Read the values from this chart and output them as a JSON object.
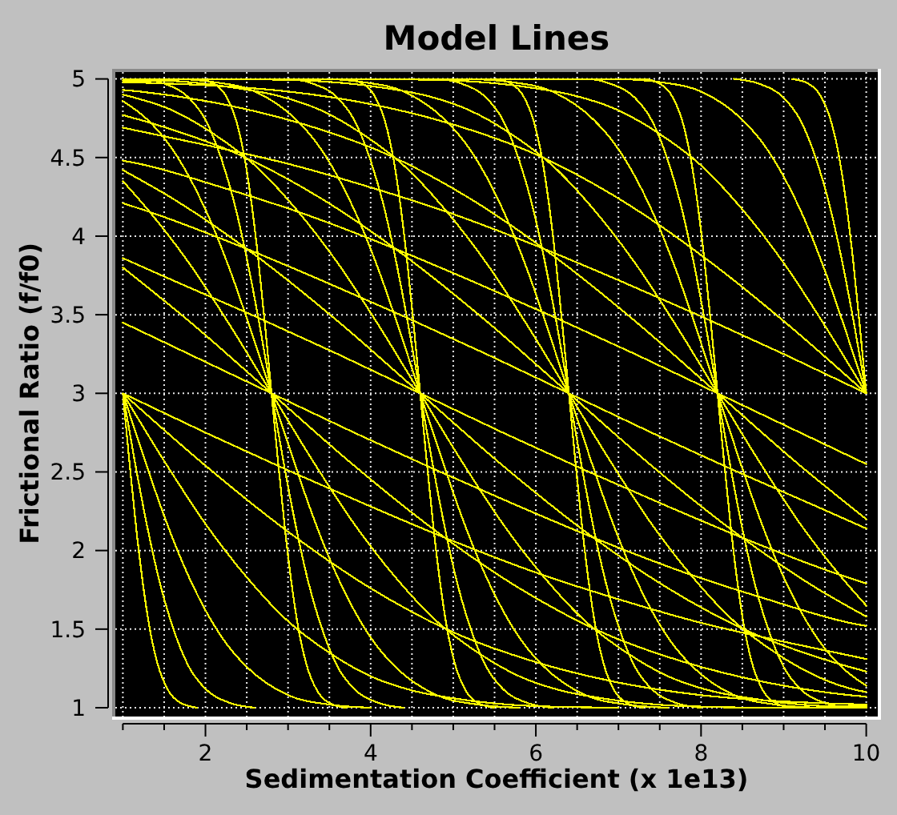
{
  "chart_data": {
    "type": "line",
    "title": "Model Lines",
    "xlabel": "Sedimentation Coefficient (x 1e13)",
    "ylabel": "Frictional Ratio (f/f0)",
    "color": "#ffff00",
    "grid": true,
    "xlim": [
      1,
      10
    ],
    "ylim": [
      1,
      5
    ],
    "xticks": [
      {
        "value": 1,
        "label": null
      },
      {
        "value": 1.5,
        "label": null
      },
      2,
      {
        "value": 2.5,
        "label": null
      },
      {
        "value": 3,
        "label": null
      },
      {
        "value": 3.5,
        "label": null
      },
      4,
      {
        "value": 4.5,
        "label": null
      },
      {
        "value": 5,
        "label": null
      },
      {
        "value": 5.5,
        "label": null
      },
      6,
      {
        "value": 6.5,
        "label": null
      },
      {
        "value": 7,
        "label": null
      },
      {
        "value": 7.5,
        "label": null
      },
      8,
      {
        "value": 8.5,
        "label": null
      },
      {
        "value": 9,
        "label": null
      },
      {
        "value": 9.5,
        "label": null
      },
      10
    ],
    "yticks": [
      1,
      1.5,
      2,
      2.5,
      3,
      3.5,
      4,
      4.5,
      5
    ],
    "series": [
      {
        "x": [
          1,
          2,
          3,
          4,
          5,
          6,
          7,
          8,
          9,
          10
        ],
        "values": [
          3,
          2.75,
          2.51,
          2.28,
          2.06,
          1.86,
          1.69,
          1.54,
          1.42,
          1.31
        ]
      },
      {
        "x": [
          1,
          1.8,
          2.8,
          3.8,
          4.8,
          5.8,
          6.8,
          7.8,
          8.8,
          9.8,
          10
        ],
        "values": [
          3.45,
          3.25,
          3,
          2.75,
          2.51,
          2.28,
          2.06,
          1.86,
          1.69,
          1.54,
          1.52
        ]
      },
      {
        "x": [
          1,
          1.6,
          2.6,
          3.6,
          4.6,
          5.6,
          6.6,
          7.6,
          8.6,
          9.6,
          10
        ],
        "values": [
          3.86,
          3.72,
          3.49,
          3.25,
          3,
          2.75,
          2.51,
          2.28,
          2.06,
          1.86,
          1.79
        ]
      },
      {
        "x": [
          1,
          1.4,
          2.4,
          3.4,
          4.4,
          5.4,
          6.4,
          7.4,
          8.4,
          9.4,
          10
        ],
        "values": [
          4.21,
          4.14,
          3.94,
          3.72,
          3.49,
          3.25,
          3,
          2.75,
          2.51,
          2.28,
          2.14
        ]
      },
      {
        "x": [
          1,
          1.2,
          2.2,
          3.2,
          4.2,
          5.2,
          6.2,
          7.2,
          8.2,
          9.2,
          10
        ],
        "values": [
          4.48,
          4.46,
          4.31,
          4.14,
          3.94,
          3.72,
          3.49,
          3.25,
          3,
          2.75,
          2.55
        ]
      },
      {
        "x": [
          1,
          2,
          3,
          4,
          5,
          6,
          7,
          8,
          9,
          10
        ],
        "values": [
          4.69,
          4.58,
          4.46,
          4.31,
          4.14,
          3.94,
          3.72,
          3.49,
          3.25,
          3
        ]
      },
      {
        "x": [
          1,
          2,
          3,
          4,
          5,
          6,
          7,
          8,
          9,
          10
        ],
        "values": [
          3,
          2.54,
          2.12,
          1.76,
          1.48,
          1.29,
          1.16,
          1.08,
          1.04,
          1.02
        ]
      },
      {
        "x": [
          1,
          1.8,
          2.8,
          3.8,
          4.8,
          5.8,
          6.8,
          7.8,
          8.8,
          9.8,
          10
        ],
        "values": [
          3.8,
          3.46,
          3,
          2.54,
          2.12,
          1.76,
          1.48,
          1.29,
          1.16,
          1.08,
          1.07
        ]
      },
      {
        "x": [
          1,
          1.6,
          2.6,
          3.6,
          4.6,
          5.6,
          6.6,
          7.6,
          8.6,
          9.6,
          10
        ],
        "values": [
          4.42,
          4.24,
          3.88,
          3.46,
          3,
          2.54,
          2.12,
          1.76,
          1.48,
          1.29,
          1.23
        ]
      },
      {
        "x": [
          1,
          1.4,
          2.4,
          3.4,
          4.4,
          5.4,
          6.4,
          7.4,
          8.4,
          9.4,
          10
        ],
        "values": [
          4.77,
          4.71,
          4.52,
          4.24,
          3.88,
          3.46,
          3,
          2.54,
          2.12,
          1.76,
          1.58
        ]
      },
      {
        "x": [
          1,
          1.2,
          2.2,
          3.2,
          4.2,
          5.2,
          6.2,
          7.2,
          8.2,
          9.2,
          10
        ],
        "values": [
          4.93,
          4.92,
          4.84,
          4.71,
          4.52,
          4.24,
          3.88,
          3.46,
          3,
          2.54,
          2.2
        ]
      },
      {
        "x": [
          1,
          2,
          3,
          4,
          5,
          6,
          7,
          8,
          9,
          10
        ],
        "values": [
          4.98,
          4.96,
          4.92,
          4.84,
          4.71,
          4.52,
          4.24,
          3.88,
          3.46,
          3
        ]
      },
      {
        "x": [
          1,
          1.5,
          2,
          2.5,
          3,
          3.5,
          4,
          4.5,
          5,
          6,
          7
        ],
        "values": [
          3,
          2.57,
          2.17,
          1.83,
          1.55,
          1.35,
          1.2,
          1.11,
          1.06,
          1.01,
          1
        ]
      },
      {
        "x": [
          1,
          1.3,
          1.8,
          2.3,
          2.8,
          3.3,
          3.8,
          4.3,
          4.8,
          5.3,
          5.8,
          6.3,
          6.8,
          7.8,
          8.8,
          10
        ],
        "values": [
          4.35,
          4.17,
          3.83,
          3.43,
          3,
          2.57,
          2.17,
          1.83,
          1.55,
          1.35,
          1.2,
          1.11,
          1.06,
          1.01,
          1,
          1
        ]
      },
      {
        "x": [
          1,
          1.6,
          2.1,
          2.6,
          3.1,
          3.6,
          4.1,
          4.6,
          5.1,
          5.6,
          6.1,
          6.6,
          7.1,
          7.6,
          8.1,
          8.6,
          9.6,
          10
        ],
        "values": [
          4.9,
          4.8,
          4.65,
          4.45,
          4.17,
          3.83,
          3.43,
          3,
          2.57,
          2.17,
          1.83,
          1.55,
          1.35,
          1.2,
          1.11,
          1.06,
          1.01,
          1.01
        ]
      },
      {
        "x": [
          1,
          1.4,
          2.4,
          2.9,
          3.4,
          3.9,
          4.4,
          4.9,
          5.4,
          5.9,
          6.4,
          6.9,
          7.4,
          7.9,
          8.4,
          8.9,
          9.4,
          9.9,
          10
        ],
        "values": [
          4.99,
          4.99,
          4.94,
          4.89,
          4.8,
          4.65,
          4.45,
          4.17,
          3.83,
          3.43,
          3,
          2.57,
          2.17,
          1.83,
          1.55,
          1.35,
          1.2,
          1.11,
          1.1
        ]
      },
      {
        "x": [
          1,
          2.2,
          3.2,
          4.2,
          4.7,
          5.2,
          5.7,
          6.2,
          6.7,
          7.2,
          7.7,
          8.2,
          8.7,
          9.2,
          9.7,
          10
        ],
        "values": [
          5,
          5,
          4.99,
          4.94,
          4.89,
          4.8,
          4.65,
          4.45,
          4.17,
          3.83,
          3.43,
          3,
          2.57,
          2.17,
          1.83,
          1.65
        ]
      },
      {
        "x": [
          4,
          5,
          6,
          6.5,
          7,
          7.5,
          8,
          8.5,
          9,
          9.5,
          10
        ],
        "values": [
          5,
          4.99,
          4.94,
          4.89,
          4.8,
          4.65,
          4.45,
          4.17,
          3.83,
          3.43,
          3
        ]
      },
      {
        "x": [
          1,
          1.25,
          1.5,
          1.75,
          2,
          2.25,
          2.5,
          3,
          3.5,
          4
        ],
        "values": [
          3,
          2.6,
          2.22,
          1.89,
          1.62,
          1.41,
          1.26,
          1.08,
          1.02,
          1
        ]
      },
      {
        "x": [
          1,
          1.3,
          1.55,
          1.8,
          2.05,
          2.3,
          2.55,
          2.8,
          3.05,
          3.3,
          3.55,
          3.8,
          4.05,
          4.3,
          4.8,
          5.3,
          5.8
        ],
        "values": [
          4.86,
          4.74,
          4.59,
          4.38,
          4.11,
          3.78,
          3.4,
          3,
          2.6,
          2.22,
          1.89,
          1.62,
          1.41,
          1.26,
          1.08,
          1.02,
          1
        ]
      },
      {
        "x": [
          1,
          1.6,
          2.1,
          2.6,
          3.1,
          3.35,
          3.6,
          3.85,
          4.1,
          4.35,
          4.6,
          4.85,
          5.1,
          5.35,
          5.6,
          5.85,
          6.1,
          6.6,
          7.1,
          7.6
        ],
        "values": [
          5,
          5,
          4.98,
          4.92,
          4.74,
          4.59,
          4.38,
          4.11,
          3.78,
          3.4,
          3,
          2.6,
          2.22,
          1.89,
          1.62,
          1.41,
          1.26,
          1.08,
          1.02,
          1
        ]
      },
      {
        "x": [
          1,
          3.4,
          3.9,
          4.4,
          4.9,
          5.15,
          5.4,
          5.65,
          5.9,
          6.15,
          6.4,
          6.65,
          6.9,
          7.15,
          7.4,
          7.65,
          7.9,
          8.4,
          8.9,
          9.4
        ],
        "values": [
          5,
          5,
          4.98,
          4.92,
          4.74,
          4.59,
          4.38,
          4.11,
          3.78,
          3.4,
          3,
          2.6,
          2.22,
          1.89,
          1.62,
          1.41,
          1.26,
          1.08,
          1.02,
          1
        ]
      },
      {
        "x": [
          5.2,
          5.7,
          6.2,
          6.7,
          6.95,
          7.2,
          7.45,
          7.7,
          7.95,
          8.2,
          8.45,
          8.7,
          8.95,
          9.2,
          9.45,
          9.7,
          10
        ],
        "values": [
          5,
          4.98,
          4.92,
          4.74,
          4.59,
          4.38,
          4.11,
          3.78,
          3.4,
          3,
          2.6,
          2.22,
          1.89,
          1.62,
          1.41,
          1.26,
          1.14
        ]
      },
      {
        "x": [
          7,
          7.5,
          8,
          8.5,
          8.75,
          9,
          9.25,
          9.5,
          9.75,
          10
        ],
        "values": [
          5,
          4.98,
          4.92,
          4.74,
          4.59,
          4.38,
          4.11,
          3.78,
          3.4,
          3
        ]
      },
      {
        "x": [
          1,
          1.15,
          1.3,
          1.45,
          1.6,
          1.8,
          2,
          2.3,
          2.6
        ],
        "values": [
          3,
          2.55,
          2.14,
          1.79,
          1.52,
          1.26,
          1.12,
          1.03,
          1
        ]
      },
      {
        "x": [
          1,
          1.2,
          1.5,
          1.8,
          2,
          2.2,
          2.35,
          2.5,
          2.65,
          2.8,
          2.95,
          3.1,
          3.25,
          3.4,
          3.6,
          3.8,
          4.1,
          4.4
        ],
        "values": [
          5,
          5,
          4.97,
          4.88,
          4.74,
          4.48,
          4.21,
          3.86,
          3.45,
          3,
          2.55,
          2.14,
          1.79,
          1.52,
          1.26,
          1.12,
          1.03,
          1
        ]
      },
      {
        "x": [
          1,
          3,
          3.3,
          3.6,
          3.8,
          4,
          4.15,
          4.3,
          4.45,
          4.6,
          4.75,
          4.9,
          5.05,
          5.2,
          5.4,
          5.6,
          5.9,
          6.2
        ],
        "values": [
          5,
          5,
          4.97,
          4.88,
          4.74,
          4.48,
          4.21,
          3.86,
          3.45,
          3,
          2.55,
          2.14,
          1.79,
          1.52,
          1.26,
          1.12,
          1.03,
          1
        ]
      },
      {
        "x": [
          1,
          4.8,
          5.1,
          5.4,
          5.6,
          5.8,
          5.95,
          6.1,
          6.25,
          6.4,
          6.55,
          6.7,
          6.85,
          7,
          7.2,
          7.4,
          7.7,
          8
        ],
        "values": [
          5,
          5,
          4.97,
          4.88,
          4.74,
          4.48,
          4.21,
          3.86,
          3.45,
          3,
          2.55,
          2.14,
          1.79,
          1.52,
          1.26,
          1.12,
          1.03,
          1
        ]
      },
      {
        "x": [
          1,
          6.6,
          6.9,
          7.2,
          7.4,
          7.6,
          7.75,
          7.9,
          8.05,
          8.2,
          8.35,
          8.5,
          8.65,
          8.8,
          9,
          9.2,
          9.5,
          9.8
        ],
        "values": [
          5,
          5,
          4.97,
          4.88,
          4.74,
          4.48,
          4.21,
          3.86,
          3.45,
          3,
          2.55,
          2.14,
          1.79,
          1.52,
          1.26,
          1.12,
          1.03,
          1
        ]
      },
      {
        "x": [
          8.4,
          8.7,
          9,
          9.2,
          9.4,
          9.55,
          9.7,
          9.85,
          10
        ],
        "values": [
          5,
          4.97,
          4.88,
          4.74,
          4.48,
          4.21,
          3.86,
          3.45,
          3
        ]
      },
      {
        "x": [
          1,
          1.08,
          1.16,
          1.24,
          1.32,
          1.42,
          1.55,
          1.7,
          1.9
        ],
        "values": [
          3,
          2.56,
          2.15,
          1.8,
          1.52,
          1.28,
          1.11,
          1.03,
          1
        ]
      },
      {
        "x": [
          1,
          1.9,
          2.1,
          2.25,
          2.38,
          2.48,
          2.56,
          2.64,
          2.72,
          2.8,
          2.88,
          2.96,
          3.04,
          3.12,
          3.22,
          3.35,
          3.5,
          3.7
        ],
        "values": [
          5,
          5,
          4.97,
          4.89,
          4.72,
          4.48,
          4.2,
          3.85,
          3.44,
          3,
          2.56,
          2.15,
          1.8,
          1.52,
          1.28,
          1.11,
          1.03,
          1
        ]
      },
      {
        "x": [
          1,
          3.7,
          3.9,
          4.05,
          4.18,
          4.28,
          4.36,
          4.44,
          4.52,
          4.6,
          4.68,
          4.76,
          4.84,
          4.92,
          5.02,
          5.15,
          5.3,
          5.5
        ],
        "values": [
          5,
          5,
          4.97,
          4.89,
          4.72,
          4.48,
          4.2,
          3.85,
          3.44,
          3,
          2.56,
          2.15,
          1.8,
          1.52,
          1.28,
          1.11,
          1.03,
          1
        ]
      },
      {
        "x": [
          1,
          5.5,
          5.7,
          5.85,
          5.98,
          6.08,
          6.16,
          6.24,
          6.32,
          6.4,
          6.48,
          6.56,
          6.64,
          6.72,
          6.82,
          6.95,
          7.1,
          7.3
        ],
        "values": [
          5,
          5,
          4.97,
          4.89,
          4.72,
          4.48,
          4.2,
          3.85,
          3.44,
          3,
          2.56,
          2.15,
          1.8,
          1.52,
          1.28,
          1.11,
          1.03,
          1
        ]
      },
      {
        "x": [
          1,
          7.3,
          7.5,
          7.65,
          7.78,
          7.88,
          7.96,
          8.04,
          8.12,
          8.2,
          8.28,
          8.36,
          8.44,
          8.52,
          8.62,
          8.75,
          8.9,
          9.1
        ],
        "values": [
          5,
          5,
          4.97,
          4.89,
          4.72,
          4.48,
          4.2,
          3.85,
          3.44,
          3,
          2.56,
          2.15,
          1.8,
          1.52,
          1.28,
          1.11,
          1.03,
          1
        ]
      },
      {
        "x": [
          9.1,
          9.3,
          9.45,
          9.58,
          9.68,
          9.76,
          9.84,
          9.92,
          10
        ],
        "values": [
          5,
          4.97,
          4.89,
          4.72,
          4.48,
          4.2,
          3.85,
          3.44,
          3
        ]
      }
    ]
  }
}
